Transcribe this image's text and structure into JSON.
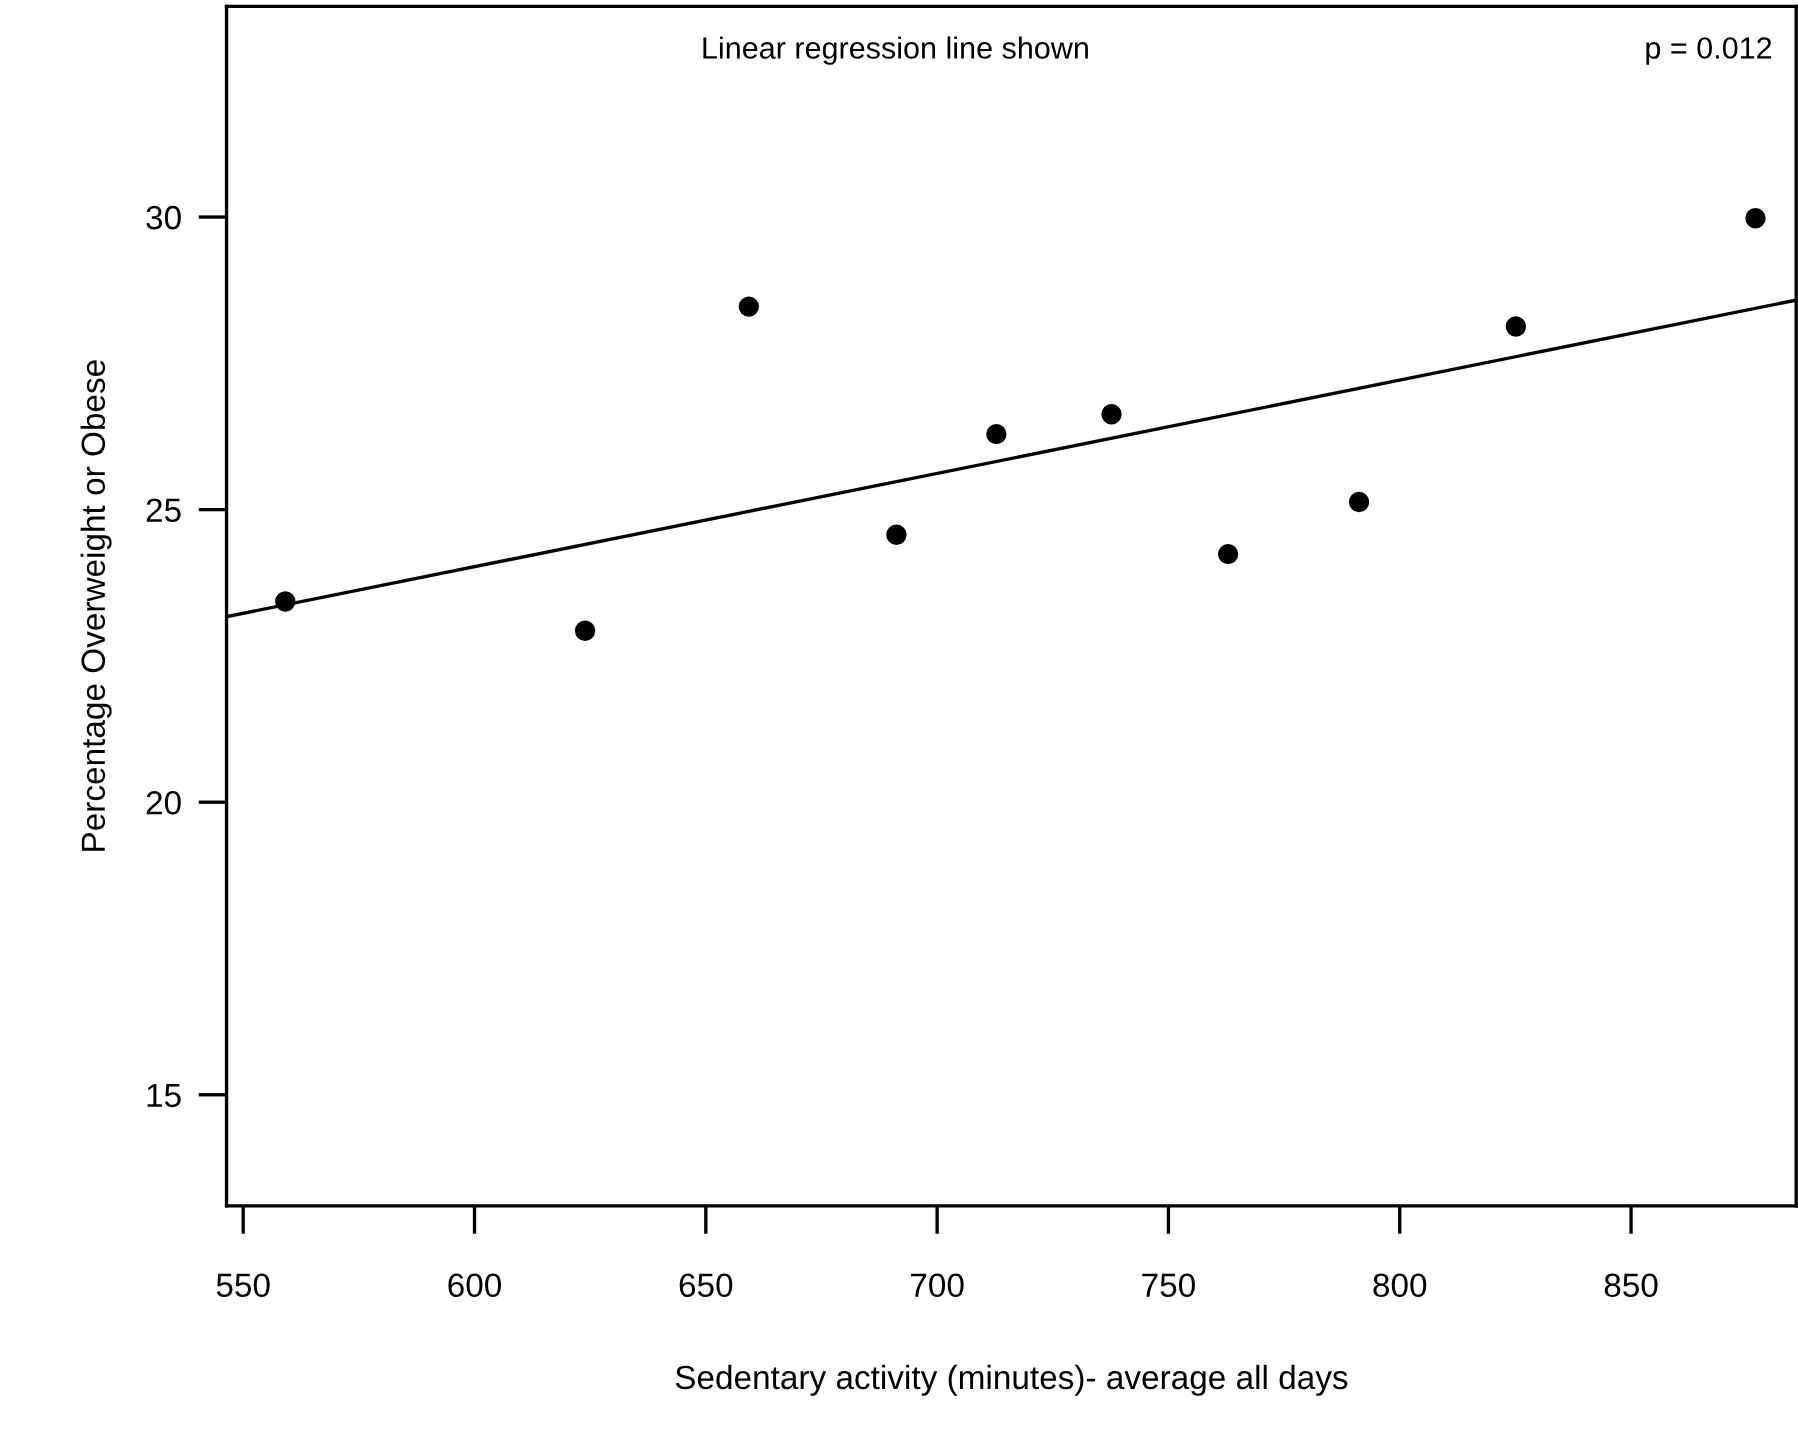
{
  "chart_data": {
    "type": "scatter",
    "xlabel": "Sedentary activity (minutes)- average all days",
    "ylabel": "Percentage Overweight or Obese",
    "annotations": [
      "Linear regression line shown",
      "p = 0.012"
    ],
    "series": [
      {
        "color": "#000000",
        "marker": "circle",
        "x": [
          559.1,
          623.9,
          659.3,
          691.2,
          712.8,
          737.7,
          762.9,
          791.2,
          825.1,
          876.9
        ],
        "values": [
          23.43,
          22.93,
          28.47,
          24.57,
          26.29,
          26.63,
          24.24,
          25.13,
          28.13,
          29.98
        ]
      },
      {
        "type": "line",
        "marker": "none",
        "color": "#000000",
        "x": [
          546.4,
          885.7
        ],
        "values": [
          23.17,
          28.58
        ]
      }
    ],
    "xlim": [
      546.4,
      885.7
    ],
    "ylim": [
      13.1,
      33.6
    ],
    "xticks": [
      550,
      600,
      650,
      700,
      750,
      800,
      850
    ],
    "yticks": [
      15,
      20,
      25,
      30
    ],
    "line_style": "solid",
    "grid": false,
    "legend": false
  }
}
